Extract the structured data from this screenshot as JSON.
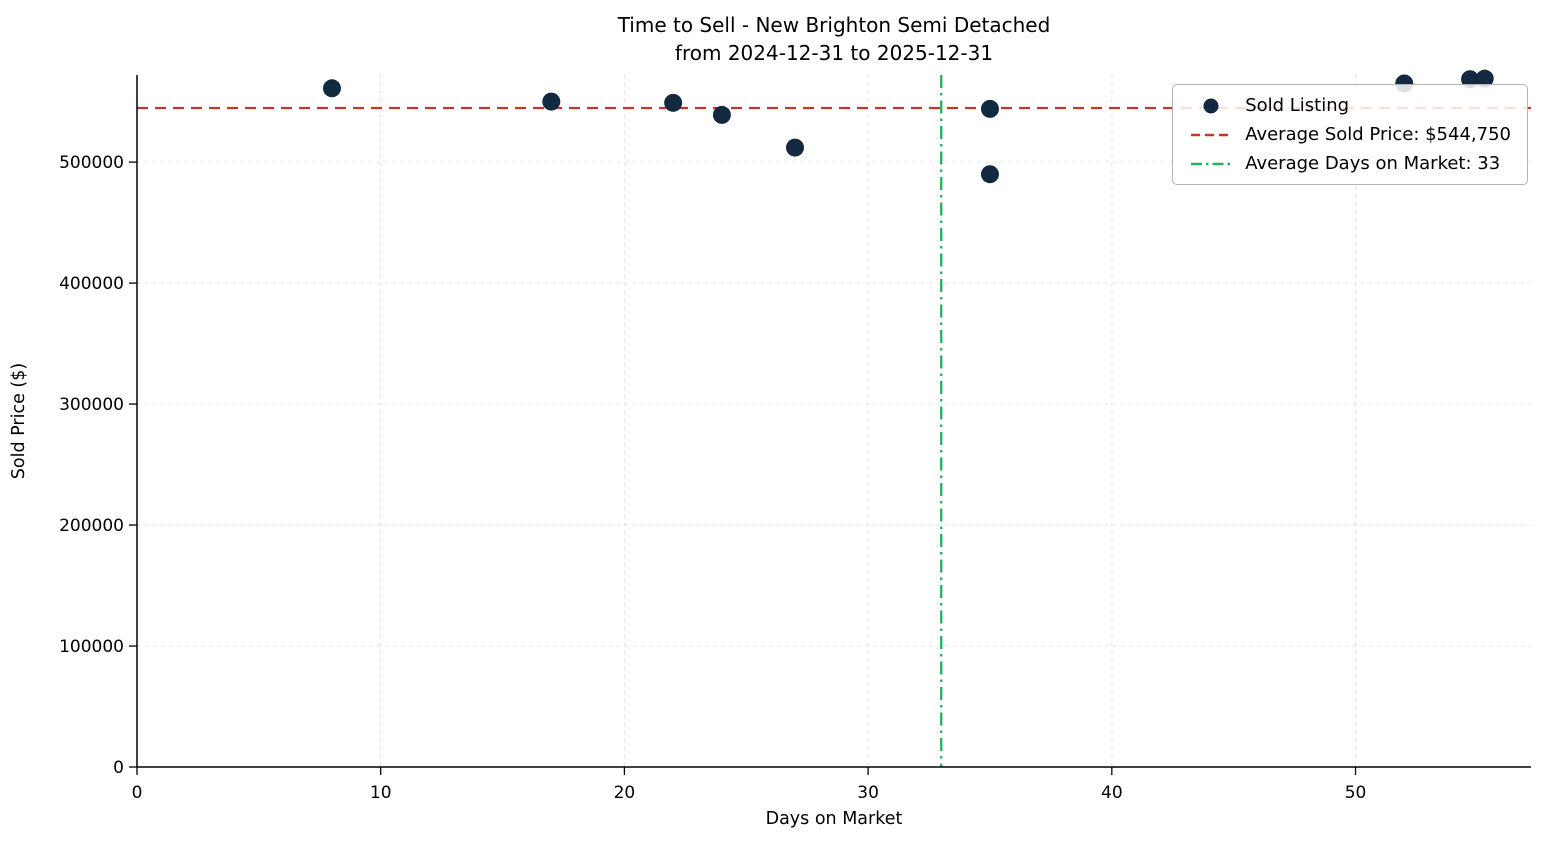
{
  "title": {
    "line1": "Time to Sell - New Brighton Semi Detached",
    "line2": "from 2024-12-31 to 2025-12-31"
  },
  "axes": {
    "xlabel": "Days on Market",
    "ylabel": "Sold Price ($)"
  },
  "legend": {
    "sold_listing": "Sold Listing",
    "avg_price": "Average Sold Price: $544,750",
    "avg_dom": "Average Days on Market: 33"
  },
  "chart_data": {
    "type": "scatter",
    "title": "Time to Sell - New Brighton Semi Detached",
    "subtitle": "from 2024-12-31 to 2025-12-31",
    "xlabel": "Days on Market",
    "ylabel": "Sold Price ($)",
    "xlim": [
      0,
      57.2
    ],
    "ylim": [
      0,
      572000
    ],
    "x_ticks": [
      0,
      10,
      20,
      30,
      40,
      50
    ],
    "y_ticks": [
      0,
      100000,
      200000,
      300000,
      400000,
      500000
    ],
    "grid": true,
    "legend_position": "upper right",
    "series": [
      {
        "name": "Sold Listing",
        "marker": "circle",
        "points": [
          {
            "x": 8,
            "y": 561000
          },
          {
            "x": 17,
            "y": 550000
          },
          {
            "x": 22,
            "y": 549000
          },
          {
            "x": 24,
            "y": 539000
          },
          {
            "x": 27,
            "y": 512000
          },
          {
            "x": 35,
            "y": 544000
          },
          {
            "x": 35,
            "y": 490000
          },
          {
            "x": 52,
            "y": 565000
          },
          {
            "x": 54.7,
            "y": 568500
          },
          {
            "x": 55.3,
            "y": 569000
          }
        ]
      }
    ],
    "reference_lines": [
      {
        "name": "average_sold_price",
        "orientation": "horizontal",
        "value": 544750,
        "label": "Average Sold Price: $544,750",
        "style": "dashed"
      },
      {
        "name": "average_days_on_market",
        "orientation": "vertical",
        "value": 33,
        "label": "Average Days on Market: 33",
        "style": "dashdot"
      }
    ],
    "colors": {
      "point": "#13293f",
      "avg_price_line": "#c0392b",
      "avg_dom_line": "#27ae60",
      "grid": "#cfcfcf",
      "axis": "#000000"
    }
  }
}
